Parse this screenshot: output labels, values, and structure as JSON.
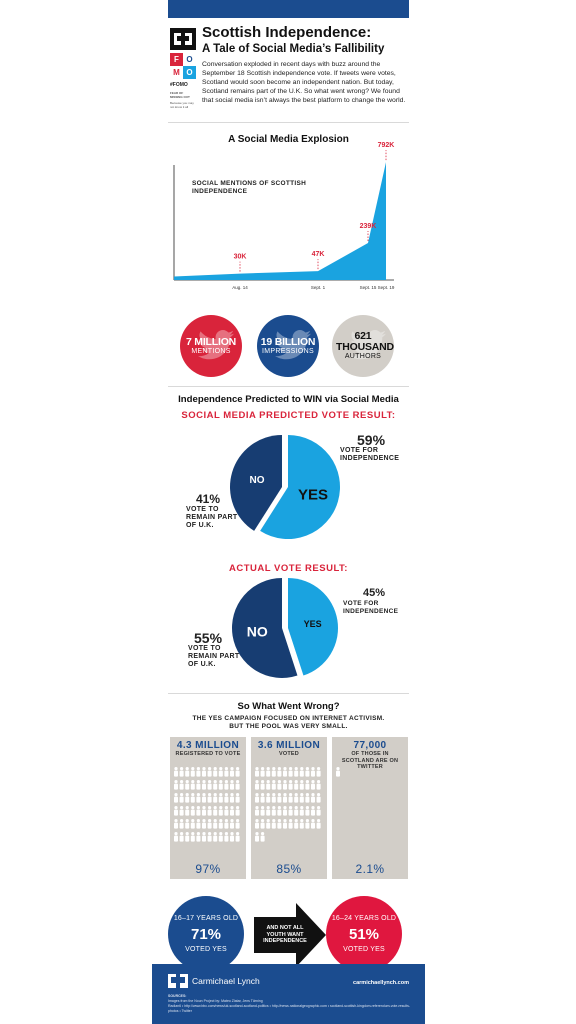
{
  "header": {
    "logo_letters": [
      "F",
      "O",
      "M",
      "O"
    ],
    "logo_tag": "#FOMO",
    "logo_note": "FEAR OF MISSING OUT",
    "logo_small": "Because you may not know it all",
    "title": "Scottish Independence:",
    "subtitle": "A Tale of Social Media’s Fallibility",
    "intro": "Conversation exploded in recent days with buzz around the September 18 Scottish independence vote. If tweets were votes, Scotland would soon become an independent nation. But today, Scotland remains part of the U.K. So what went wrong? We found that social media isn’t always the best platform to change the world."
  },
  "explosion": {
    "title": "A Social Media Explosion",
    "chart_label": "SOCIAL MENTIONS OF SCOTTISH INDEPENDENCE"
  },
  "chart_data": [
    {
      "type": "area",
      "title": "A Social Media Explosion",
      "ylabel": "SOCIAL MENTIONS OF SCOTTISH INDEPENDENCE",
      "x": [
        "Aug. 14",
        "Sept. 1",
        "Sept. 15",
        "Sept. 19"
      ],
      "values": [
        30,
        47,
        239,
        792
      ],
      "labels": [
        "30K",
        "47K",
        "239K",
        "792K"
      ],
      "ylim": [
        0,
        800
      ],
      "color": "#1aa3e0",
      "highlight_color": "#d9243b"
    },
    {
      "type": "pie",
      "title": "SOCIAL MEDIA PREDICTED VOTE RESULT:",
      "categories": [
        "YES",
        "NO"
      ],
      "values": [
        59,
        41
      ],
      "colors": [
        "#1aa3e0",
        "#173d72"
      ]
    },
    {
      "type": "pie",
      "title": "ACTUAL VOTE RESULT:",
      "categories": [
        "YES",
        "NO"
      ],
      "values": [
        45,
        55
      ],
      "colors": [
        "#1aa3e0",
        "#173d72"
      ]
    },
    {
      "type": "bar",
      "title": "So What Went Wrong?",
      "categories": [
        "REGISTERED TO VOTE",
        "VOTED",
        "OF THOSE IN SCOTLAND ARE ON TWITTER"
      ],
      "values": [
        97,
        85,
        2.1
      ],
      "labels": [
        "97%",
        "85%",
        "2.1%"
      ]
    }
  ],
  "stats": [
    {
      "num": "7 MILLION",
      "cap": "MENTIONS",
      "bg": "#d9243b",
      "fg": "#ffffff"
    },
    {
      "num": "19 BILLION",
      "cap": "IMPRESSIONS",
      "bg": "#1b4c8f",
      "fg": "#ffffff"
    },
    {
      "num": "621 THOUSAND",
      "cap": "AUTHORS",
      "bg": "#d2cec8",
      "fg": "#111111"
    }
  ],
  "predicted": {
    "title": "Independence Predicted to WIN via Social Media",
    "heading": "SOCIAL MEDIA PREDICTED VOTE RESULT:",
    "yes_pct": "59%",
    "yes_cap": "VOTE FOR INDEPENDENCE",
    "no_pct": "41%",
    "no_cap": "VOTE TO REMAIN PART OF U.K.",
    "yes_label": "YES",
    "no_label": "NO"
  },
  "actual": {
    "heading": "ACTUAL VOTE RESULT:",
    "yes_pct": "45%",
    "yes_cap": "VOTE FOR INDEPENDENCE",
    "no_pct": "55%",
    "no_cap": "VOTE TO REMAIN PART OF U.K.",
    "yes_label": "YES",
    "no_label": "NO"
  },
  "wrong": {
    "title": "So What Went Wrong?",
    "sub": "THE YES CAMPAIGN FOCUSED ON INTERNET ACTIVISM. BUT THE POOL WAS VERY SMALL.",
    "columns": [
      {
        "num": "4.3 MILLION",
        "cap": "REGISTERED TO VOTE",
        "pct": "97%"
      },
      {
        "num": "3.6 MILLION",
        "cap": "VOTED",
        "pct": "85%"
      },
      {
        "num": "77,000",
        "cap": "OF THOSE IN SCOTLAND ARE ON TWITTER",
        "pct": "2.1%"
      }
    ]
  },
  "youth": {
    "left": {
      "cap": "16–17 YEARS OLD",
      "pct": "71%",
      "sub": "VOTED YES"
    },
    "arrow": "AND NOT ALL YOUTH WANT INDEPENDENCE",
    "right": {
      "cap": "16–24 YEARS OLD",
      "pct": "51%",
      "sub": "VOTED YES"
    }
  },
  "footer": {
    "brand": "Carmichael Lynch",
    "url": "carmichaellynch.com",
    "sources_head": "SOURCES:",
    "sources": "Images from the Noun Project by: Mateo Zlatar, Jens Tärning",
    "sources2": "Radian6 • http://www.bbc.com/news/uk-scotland-scotland-politics • http://news.nationalgeographic.com • scotland-scottish-kingdom-referendum-vote-results-photos • Twitter"
  },
  "colors": {
    "blue": "#1b4c8f",
    "cyan": "#1aa3e0",
    "red": "#d9243b",
    "grey": "#d2cec8"
  }
}
